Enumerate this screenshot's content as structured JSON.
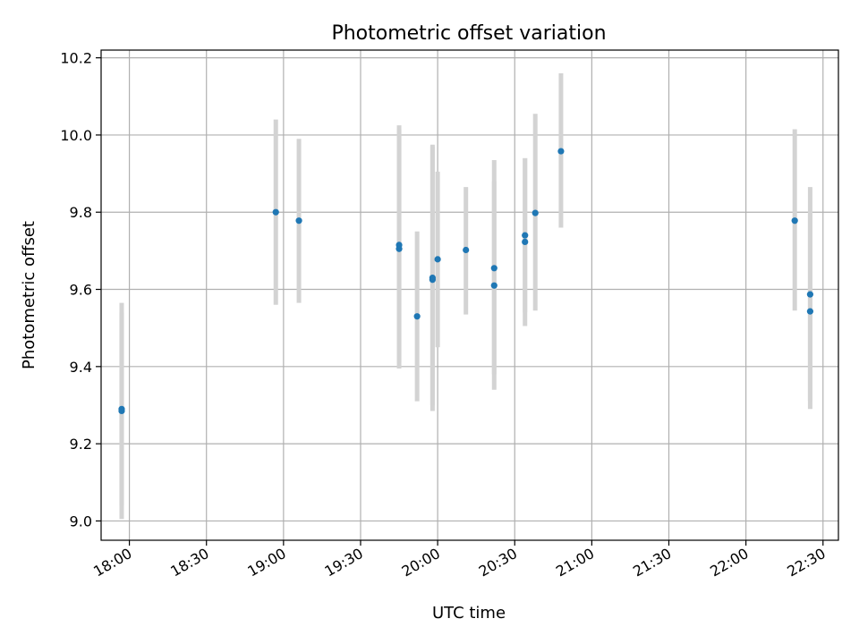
{
  "chart_data": {
    "type": "scatter",
    "title": "Photometric offset variation",
    "xlabel": "UTC time",
    "ylabel": "Photometric offset",
    "x_axis_type": "time",
    "xlim": [
      "17:49",
      "22:36"
    ],
    "ylim": [
      8.95,
      10.22
    ],
    "x_ticks": [
      "18:00",
      "18:30",
      "19:00",
      "19:30",
      "20:00",
      "20:30",
      "21:00",
      "21:30",
      "22:00",
      "22:30"
    ],
    "y_ticks": [
      9.0,
      9.2,
      9.4,
      9.6,
      9.8,
      10.0,
      10.2
    ],
    "y_tick_labels": [
      "9.0",
      "9.2",
      "9.4",
      "9.6",
      "9.8",
      "10.0",
      "10.2"
    ],
    "grid": true,
    "legend": false,
    "colors": {
      "point": "#1f77b4",
      "errorbar": "#d3d3d3",
      "grid": "#b0b0b0"
    },
    "points": [
      {
        "time": "17:57",
        "y": 9.29,
        "yerr_low": 9.04,
        "yerr_high": 9.54
      },
      {
        "time": "17:57",
        "y": 9.285,
        "yerr_low": 9.005,
        "yerr_high": 9.565
      },
      {
        "time": "18:57",
        "y": 9.8,
        "yerr_low": 9.56,
        "yerr_high": 10.04
      },
      {
        "time": "19:06",
        "y": 9.778,
        "yerr_low": 9.565,
        "yerr_high": 9.99
      },
      {
        "time": "19:45",
        "y": 9.705,
        "yerr_low": 9.395,
        "yerr_high": 10.025
      },
      {
        "time": "19:45",
        "y": 9.715,
        "yerr_low": 9.41,
        "yerr_high": 10.015
      },
      {
        "time": "19:52",
        "y": 9.53,
        "yerr_low": 9.31,
        "yerr_high": 9.75
      },
      {
        "time": "19:58",
        "y": 9.625,
        "yerr_low": 9.285,
        "yerr_high": 9.975
      },
      {
        "time": "19:58",
        "y": 9.63,
        "yerr_low": 9.3,
        "yerr_high": 9.97
      },
      {
        "time": "20:00",
        "y": 9.678,
        "yerr_low": 9.45,
        "yerr_high": 9.905
      },
      {
        "time": "20:11",
        "y": 9.702,
        "yerr_low": 9.535,
        "yerr_high": 9.865
      },
      {
        "time": "20:22",
        "y": 9.61,
        "yerr_low": 9.34,
        "yerr_high": 9.88
      },
      {
        "time": "20:22",
        "y": 9.655,
        "yerr_low": 9.38,
        "yerr_high": 9.935
      },
      {
        "time": "20:34",
        "y": 9.74,
        "yerr_low": 9.54,
        "yerr_high": 9.94
      },
      {
        "time": "20:34",
        "y": 9.723,
        "yerr_low": 9.505,
        "yerr_high": 9.94
      },
      {
        "time": "20:38",
        "y": 9.798,
        "yerr_low": 9.545,
        "yerr_high": 10.055
      },
      {
        "time": "20:48",
        "y": 9.958,
        "yerr_low": 9.76,
        "yerr_high": 10.16
      },
      {
        "time": "22:19",
        "y": 9.778,
        "yerr_low": 9.545,
        "yerr_high": 10.015
      },
      {
        "time": "22:25",
        "y": 9.587,
        "yerr_low": 9.31,
        "yerr_high": 9.865
      },
      {
        "time": "22:25",
        "y": 9.543,
        "yerr_low": 9.29,
        "yerr_high": 9.795
      }
    ]
  }
}
